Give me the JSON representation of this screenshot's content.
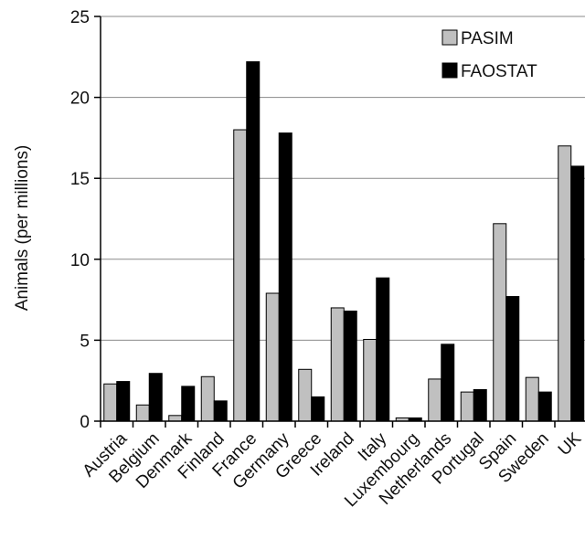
{
  "chart_data": {
    "type": "bar",
    "title": "",
    "xlabel": "",
    "ylabel": "Animals (per millions)",
    "ylim": [
      0,
      25
    ],
    "yticks": [
      0,
      5,
      10,
      15,
      20,
      25
    ],
    "grid": true,
    "legend_position": "top-right",
    "categories": [
      "Austria",
      "Belgium",
      "Denmark",
      "Finland",
      "France",
      "Germany",
      "Greece",
      "Ireland",
      "Italy",
      "Luxembourg",
      "Netherlands",
      "Portugal",
      "Spain",
      "Sweden",
      "UK"
    ],
    "series": [
      {
        "name": "PASIM",
        "color": "#c0c0c0",
        "values": [
          2.3,
          1.0,
          0.35,
          2.75,
          18.0,
          7.9,
          3.2,
          7.0,
          5.05,
          0.2,
          2.6,
          1.8,
          12.2,
          2.7,
          17.0
        ]
      },
      {
        "name": "FAOSTAT",
        "color": "#000000",
        "values": [
          2.45,
          2.95,
          2.15,
          1.25,
          22.2,
          17.8,
          1.5,
          6.8,
          8.85,
          0.2,
          4.75,
          1.95,
          7.7,
          1.8,
          15.75
        ]
      }
    ]
  }
}
